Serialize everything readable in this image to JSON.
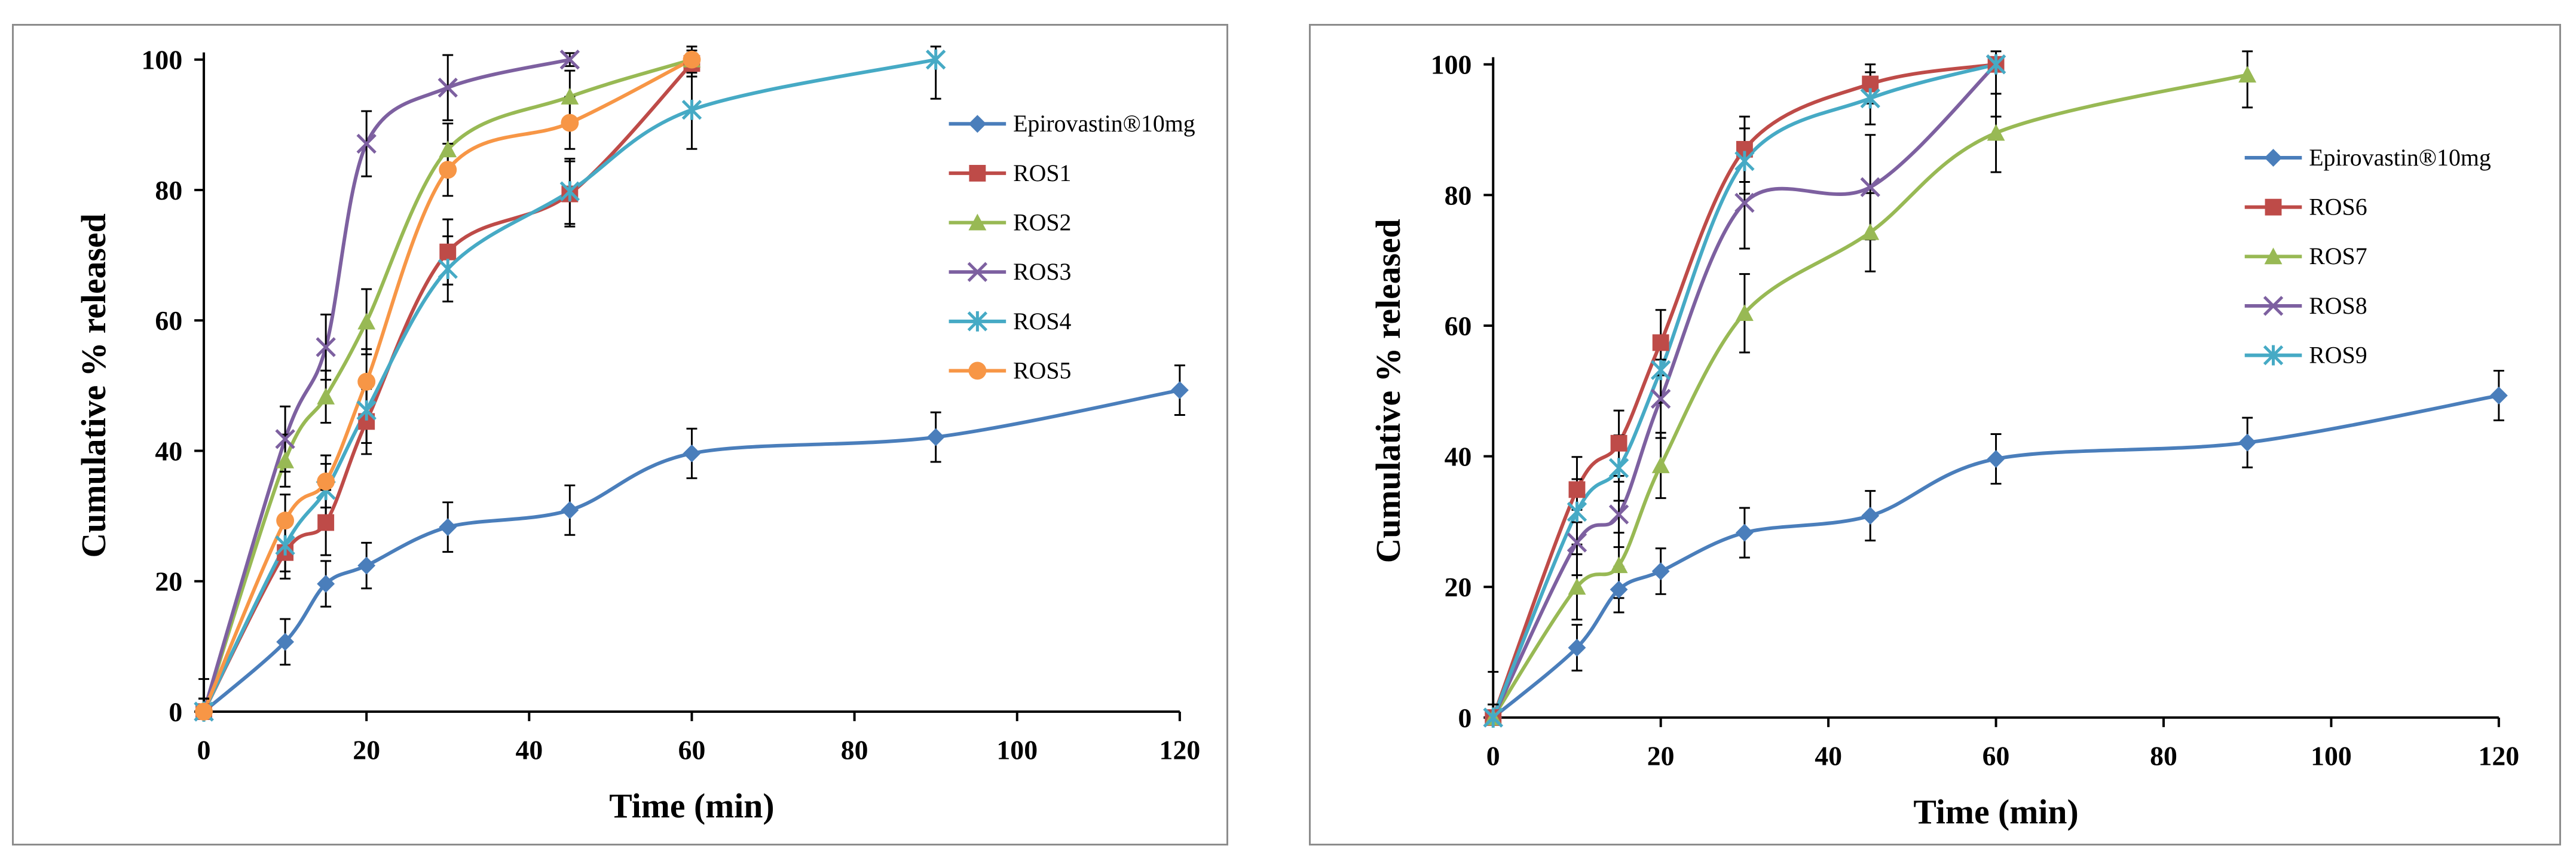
{
  "chart_data": [
    {
      "type": "line",
      "xlabel": "Time (min)",
      "ylabel": "Cumulative % released",
      "xlim": [
        0,
        120
      ],
      "ylim": [
        0,
        100
      ],
      "xticks": [
        0,
        20,
        40,
        60,
        80,
        100,
        120
      ],
      "yticks": [
        0,
        20,
        40,
        60,
        80,
        100
      ],
      "legend_position": "right",
      "series": [
        {
          "name": "Epirovastin®10mg",
          "color": "#4a7ebb",
          "marker": "diamond",
          "points": [
            [
              0,
              0
            ],
            [
              10,
              10.7
            ],
            [
              15,
              19.6
            ],
            [
              20,
              22.4
            ],
            [
              30,
              28.3
            ],
            [
              45,
              30.9
            ],
            [
              60,
              39.6
            ],
            [
              90,
              42.1
            ],
            [
              120,
              49.3
            ]
          ],
          "err": [
            2,
            3.5,
            3.5,
            3.5,
            3.8,
            3.8,
            3.8,
            3.8,
            3.8
          ]
        },
        {
          "name": "ROS1",
          "color": "#be4b48",
          "marker": "square",
          "points": [
            [
              0,
              0
            ],
            [
              10,
              24.4
            ],
            [
              15,
              29
            ],
            [
              20,
              44.5
            ],
            [
              30,
              70.5
            ],
            [
              45,
              79.4
            ],
            [
              60,
              99.4
            ]
          ],
          "err": [
            2,
            4,
            5,
            5,
            5,
            5,
            2
          ]
        },
        {
          "name": "ROS2",
          "color": "#98b954",
          "marker": "triangle",
          "points": [
            [
              0,
              0
            ],
            [
              10,
              38.5
            ],
            [
              15,
              48.3
            ],
            [
              20,
              59.8
            ],
            [
              30,
              86.2
            ],
            [
              45,
              94.3
            ],
            [
              60,
              100
            ]
          ],
          "err": [
            2,
            4,
            4,
            5,
            4,
            4,
            1
          ]
        },
        {
          "name": "ROS3",
          "color": "#7d60a0",
          "marker": "x",
          "points": [
            [
              0,
              0
            ],
            [
              10,
              41.8
            ],
            [
              15,
              55.9
            ],
            [
              20,
              87.1
            ],
            [
              30,
              95.7
            ],
            [
              45,
              100
            ]
          ],
          "err": [
            5,
            5,
            5,
            5,
            5,
            1
          ]
        },
        {
          "name": "ROS4",
          "color": "#46aac5",
          "marker": "asterisk",
          "points": [
            [
              0,
              0
            ],
            [
              10,
              25.5
            ],
            [
              15,
              34
            ],
            [
              20,
              46.2
            ],
            [
              30,
              67.9
            ],
            [
              45,
              79.8
            ],
            [
              60,
              92.3
            ],
            [
              90,
              100
            ]
          ],
          "err": [
            2,
            4,
            4,
            5,
            5,
            5,
            6,
            6
          ]
        },
        {
          "name": "ROS5",
          "color": "#f79646",
          "marker": "circle",
          "points": [
            [
              0,
              0
            ],
            [
              10,
              29.3
            ],
            [
              15,
              35.3
            ],
            [
              20,
              50.6
            ],
            [
              30,
              83.1
            ],
            [
              45,
              90.3
            ],
            [
              60,
              100
            ]
          ],
          "err": [
            2,
            4,
            4,
            5,
            4,
            4,
            2
          ]
        }
      ]
    },
    {
      "type": "line",
      "xlabel": "Time (min)",
      "ylabel": "Cumulative  % released",
      "xlim": [
        0,
        120
      ],
      "ylim": [
        0,
        100
      ],
      "xticks": [
        0,
        20,
        40,
        60,
        80,
        100,
        120
      ],
      "yticks": [
        0,
        20,
        40,
        60,
        80,
        100
      ],
      "legend_position": "right",
      "series": [
        {
          "name": "Epirovastin®10mg",
          "color": "#4a7ebb",
          "marker": "diamond",
          "points": [
            [
              0,
              0
            ],
            [
              10,
              10.7
            ],
            [
              15,
              19.6
            ],
            [
              20,
              22.4
            ],
            [
              30,
              28.3
            ],
            [
              45,
              30.9
            ],
            [
              60,
              39.6
            ],
            [
              90,
              42.1
            ],
            [
              120,
              49.3
            ]
          ],
          "err": [
            2,
            3.5,
            3.5,
            3.5,
            3.8,
            3.8,
            3.8,
            3.8,
            3.8
          ]
        },
        {
          "name": "ROS6",
          "color": "#be4b48",
          "marker": "square",
          "points": [
            [
              0,
              0
            ],
            [
              10,
              34.9
            ],
            [
              15,
              42
            ],
            [
              20,
              57.4
            ],
            [
              30,
              87
            ],
            [
              45,
              97
            ],
            [
              60,
              100
            ]
          ],
          "err": [
            7,
            5,
            5,
            5,
            5,
            3,
            1
          ]
        },
        {
          "name": "ROS7",
          "color": "#98b954",
          "marker": "triangle",
          "points": [
            [
              0,
              0
            ],
            [
              10,
              20
            ],
            [
              15,
              23.3
            ],
            [
              20,
              38.6
            ],
            [
              30,
              61.9
            ],
            [
              45,
              74.3
            ],
            [
              60,
              89.5
            ],
            [
              90,
              98.4
            ]
          ],
          "err": [
            2,
            5,
            5,
            5,
            6,
            6,
            6,
            5
          ]
        },
        {
          "name": "ROS8",
          "color": "#7d60a0",
          "marker": "x",
          "points": [
            [
              0,
              0
            ],
            [
              10,
              26.8
            ],
            [
              15,
              31.1
            ],
            [
              20,
              48.8
            ],
            [
              30,
              78.8
            ],
            [
              45,
              81.2
            ],
            [
              60,
              100
            ]
          ],
          "err": [
            2,
            5,
            5,
            6,
            7,
            8,
            8
          ]
        },
        {
          "name": "ROS9",
          "color": "#46aac5",
          "marker": "asterisk",
          "points": [
            [
              0,
              0
            ],
            [
              10,
              31.5
            ],
            [
              15,
              38.2
            ],
            [
              20,
              53.2
            ],
            [
              30,
              85.2
            ],
            [
              45,
              94.8
            ],
            [
              60,
              100
            ]
          ],
          "err": [
            2,
            5,
            5,
            5,
            5,
            4,
            1
          ]
        }
      ]
    }
  ]
}
